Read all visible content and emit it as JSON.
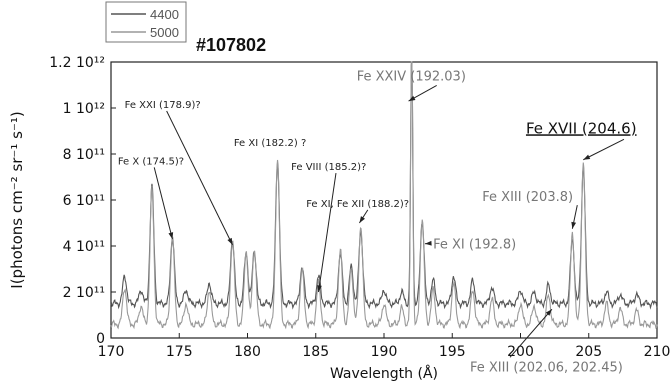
{
  "shot_label": "#107802",
  "chart_data": {
    "type": "line",
    "xlabel": "Wavelength (Å)",
    "ylabel": "I(photons cm⁻² sr⁻¹ s⁻¹)",
    "xlim": [
      170,
      210
    ],
    "ylim": [
      0,
      1200000000000.0
    ],
    "x_ticks": [
      170,
      175,
      180,
      185,
      190,
      195,
      200,
      205,
      210
    ],
    "x_tick_labels": [
      "170",
      "175",
      "180",
      "185",
      "190",
      "195",
      "200",
      "205",
      "210"
    ],
    "y_ticks": [
      0,
      200000000000.0,
      400000000000.0,
      600000000000.0,
      800000000000.0,
      1000000000000.0,
      1200000000000.0
    ],
    "y_tick_labels": [
      "0",
      "2 10¹¹",
      "4 10¹¹",
      "6 10¹¹",
      "8 10¹¹",
      "1 10¹²",
      "1.2 10¹²"
    ],
    "grid": false,
    "legend_position": "top-left, outside plot",
    "series": [
      {
        "name": "4400",
        "color": "#555555",
        "baseline": 150000000000.0,
        "peaks": [
          [
            171.0,
            120000000000.0
          ],
          [
            172.2,
            60000000000.0
          ],
          [
            173.0,
            510000000000.0
          ],
          [
            174.5,
            290000000000.0
          ],
          [
            175.5,
            60000000000.0
          ],
          [
            177.2,
            90000000000.0
          ],
          [
            178.9,
            280000000000.0
          ],
          [
            179.9,
            220000000000.0
          ],
          [
            180.5,
            230000000000.0
          ],
          [
            182.2,
            620000000000.0
          ],
          [
            184.0,
            160000000000.0
          ],
          [
            185.2,
            120000000000.0
          ],
          [
            186.8,
            220000000000.0
          ],
          [
            187.6,
            160000000000.0
          ],
          [
            188.3,
            320000000000.0
          ],
          [
            190.0,
            60000000000.0
          ],
          [
            191.3,
            50000000000.0
          ],
          [
            192.03,
            1100000000000.0
          ],
          [
            192.8,
            360000000000.0
          ],
          [
            193.6,
            100000000000.0
          ],
          [
            195.1,
            120000000000.0
          ],
          [
            196.5,
            100000000000.0
          ],
          [
            197.9,
            70000000000.0
          ],
          [
            200.0,
            60000000000.0
          ],
          [
            201.0,
            50000000000.0
          ],
          [
            202.05,
            80000000000.0
          ],
          [
            203.8,
            280000000000.0
          ],
          [
            204.6,
            590000000000.0
          ],
          [
            206.3,
            50000000000.0
          ],
          [
            207.3,
            40000000000.0
          ],
          [
            208.5,
            40000000000.0
          ]
        ]
      },
      {
        "name": "5000",
        "color": "#999999",
        "baseline": 60000000000.0,
        "peaks": [
          [
            171.0,
            160000000000.0
          ],
          [
            172.2,
            80000000000.0
          ],
          [
            173.0,
            590000000000.0
          ],
          [
            174.5,
            380000000000.0
          ],
          [
            175.5,
            90000000000.0
          ],
          [
            177.2,
            150000000000.0
          ],
          [
            178.9,
            370000000000.0
          ],
          [
            179.9,
            320000000000.0
          ],
          [
            180.5,
            330000000000.0
          ],
          [
            182.2,
            720000000000.0
          ],
          [
            184.0,
            240000000000.0
          ],
          [
            185.2,
            180000000000.0
          ],
          [
            186.8,
            320000000000.0
          ],
          [
            187.6,
            240000000000.0
          ],
          [
            188.3,
            430000000000.0
          ],
          [
            190.0,
            90000000000.0
          ],
          [
            191.3,
            70000000000.0
          ],
          [
            192.03,
            1240000000000.0
          ],
          [
            192.8,
            460000000000.0
          ],
          [
            193.6,
            150000000000.0
          ],
          [
            195.1,
            180000000000.0
          ],
          [
            196.5,
            150000000000.0
          ],
          [
            197.9,
            110000000000.0
          ],
          [
            200.0,
            90000000000.0
          ],
          [
            201.0,
            80000000000.0
          ],
          [
            202.05,
            130000000000.0
          ],
          [
            203.8,
            400000000000.0
          ],
          [
            204.6,
            700000000000.0
          ],
          [
            206.3,
            90000000000.0
          ],
          [
            207.3,
            70000000000.0
          ],
          [
            208.5,
            60000000000.0
          ]
        ]
      }
    ],
    "annotations": [
      {
        "text": "Fe XXIV (192.03)",
        "label_at": [
          188.0,
          1120000000000.0
        ],
        "arrow_to": [
          191.8,
          1030000000000.0
        ],
        "style": "light-large"
      },
      {
        "text": "Fe XXI (178.9)?",
        "label_at": [
          171.0,
          1000000000000.0
        ],
        "arrow_to": [
          178.9,
          405000000000.0
        ],
        "style": "dark-small"
      },
      {
        "text": "Fe X (174.5)?",
        "label_at": [
          170.5,
          755000000000.0
        ],
        "arrow_to": [
          174.5,
          430000000000.0
        ],
        "style": "dark-small"
      },
      {
        "text": "Fe XI (182.2) ?",
        "label_at": [
          179.0,
          835000000000.0
        ],
        "arrow_to": null,
        "style": "dark-small"
      },
      {
        "text": "Fe VIII (185.2)?",
        "label_at": [
          183.2,
          730000000000.0
        ],
        "arrow_to": [
          185.2,
          200000000000.0
        ],
        "style": "dark-small"
      },
      {
        "text": "Fe XI, Fe XII (188.2)?",
        "label_at": [
          184.3,
          570000000000.0
        ],
        "arrow_to": [
          188.2,
          500000000000.0
        ],
        "style": "dark-small"
      },
      {
        "text": "Fe XI (192.8)",
        "label_at": [
          193.6,
          390000000000.0
        ],
        "arrow_to": [
          193.0,
          410000000000.0
        ],
        "style": "light-large"
      },
      {
        "text": "Fe XIII (203.8)",
        "label_at": [
          197.2,
          595000000000.0
        ],
        "arrow_to": [
          203.8,
          475000000000.0
        ],
        "style": "light-large"
      },
      {
        "text": "Fe XVII (204.6)",
        "label_at": [
          200.4,
          890000000000.0
        ],
        "arrow_to": [
          204.6,
          775000000000.0
        ],
        "style": "dark-large-underline"
      },
      {
        "text": "Fe XIII (202.06, 202.45)",
        "label_at": [
          196.3,
          -145000000000.0
        ],
        "arrow_to": [
          202.3,
          125000000000.0
        ],
        "style": "light-large"
      }
    ]
  }
}
